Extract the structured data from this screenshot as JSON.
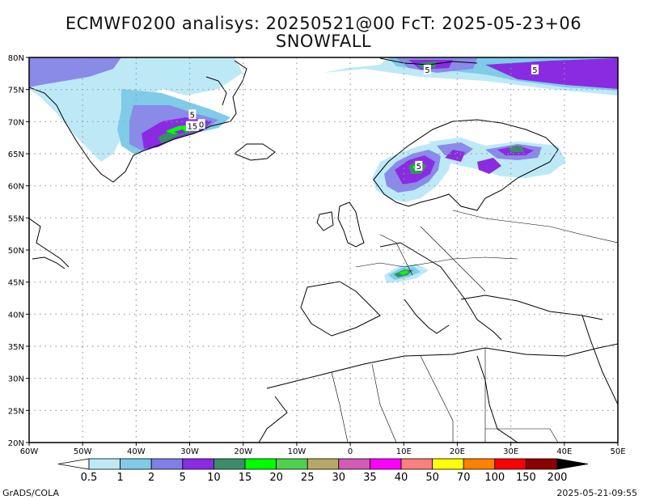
{
  "title_line1": "ECMWF0200 analisys: 20250521@00 FcT: 2025-05-23+06",
  "title_line2": "SNOWFALL",
  "footer_left": "GrADS/COLA",
  "footer_right": "2025-05-21-09:55",
  "map": {
    "lat_labels": [
      "80N",
      "75N",
      "70N",
      "65N",
      "60N",
      "55N",
      "50N",
      "45N",
      "40N",
      "35N",
      "30N",
      "25N",
      "20N"
    ],
    "lon_labels": [
      "60W",
      "50W",
      "40W",
      "30W",
      "20W",
      "10W",
      "0",
      "10E",
      "20E",
      "30E",
      "40E",
      "50E"
    ],
    "lat_range": [
      20,
      80
    ],
    "lon_range": [
      -60,
      50
    ],
    "contour_labels": [
      {
        "text": "5",
        "lon": -29.5,
        "lat": 71
      },
      {
        "text": "15",
        "lon": -29.5,
        "lat": 69.2
      },
      {
        "text": "0",
        "lon": -27.8,
        "lat": 69.5
      },
      {
        "text": "5",
        "lon": 14.4,
        "lat": 78
      },
      {
        "text": "5",
        "lon": 34.5,
        "lat": 78
      },
      {
        "text": "5",
        "lon": 12.8,
        "lat": 63
      }
    ]
  },
  "legend": {
    "labels": [
      "0.5",
      "1",
      "2",
      "5",
      "10",
      "15",
      "20",
      "25",
      "30",
      "35",
      "40",
      "50",
      "70",
      "100",
      "150",
      "200"
    ],
    "colors": [
      "#bde9f7",
      "#7fcbe8",
      "#7f7fe8",
      "#8a2be2",
      "#3c8c6c",
      "#00ff00",
      "#4fd14f",
      "#b8a868",
      "#d35ab6",
      "#ff00ff",
      "#ff7f7f",
      "#ffff00",
      "#ff8000",
      "#ff0000",
      "#8b0000"
    ]
  },
  "colors": {
    "light_blue": "#bde9f7",
    "blue": "#7fcbe8",
    "lavender": "#7f7fe8",
    "purple": "#8a2be2",
    "dark_green": "#3c8c6c",
    "green": "#00ff00"
  }
}
